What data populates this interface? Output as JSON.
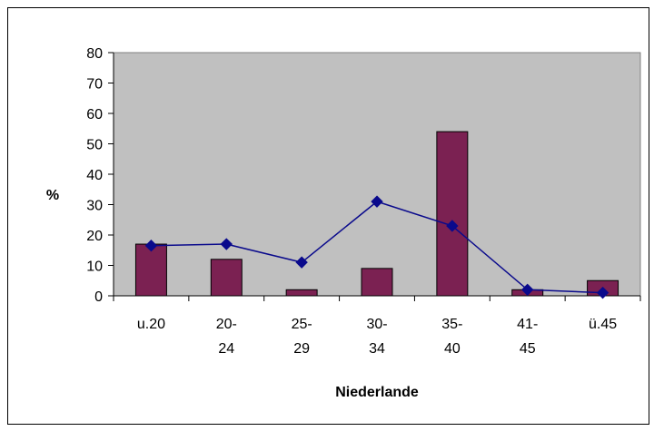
{
  "chart_data": {
    "type": "bar",
    "title": "",
    "xlabel": "Niederlande",
    "ylabel": "%",
    "ylim": [
      0,
      80
    ],
    "yticks": [
      0,
      10,
      20,
      30,
      40,
      50,
      60,
      70,
      80
    ],
    "categories": [
      [
        "u.20"
      ],
      [
        "20-",
        "24"
      ],
      [
        "25-",
        "29"
      ],
      [
        "30-",
        "34"
      ],
      [
        "35-",
        "40"
      ],
      [
        "41-",
        "45"
      ],
      [
        "ü.45"
      ]
    ],
    "series": [
      {
        "type": "bar",
        "values": [
          17,
          12,
          2,
          9,
          54,
          2,
          5
        ],
        "color": "#7B2152"
      },
      {
        "type": "line",
        "values": [
          16.5,
          17,
          11,
          31,
          23,
          2,
          1
        ],
        "color": "#0A0A8C",
        "marker": "diamond"
      }
    ],
    "plot_background": "#C0C0C0",
    "grid": false,
    "legend": "none"
  }
}
